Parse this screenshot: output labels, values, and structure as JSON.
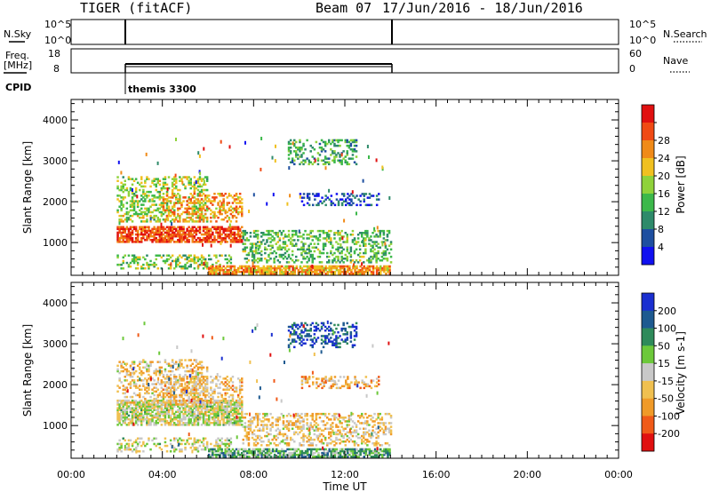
{
  "header": {
    "station": "TIGER (fitACF)",
    "beam": "Beam 07",
    "date_range": "17/Jun/2016 - 18/Jun/2016"
  },
  "param_panels": {
    "nsky_label": "N.Sky",
    "nsky_ticks": [
      "10^5",
      "10^0"
    ],
    "nsearch_label": "N.Search",
    "nsearch_ticks": [
      "10^5",
      "10^0"
    ],
    "freq_label": "Freq.",
    "freq_unit": "[MHz]",
    "freq_ticks": [
      "18",
      "8"
    ],
    "nave_label": "Nave",
    "nave_ticks": [
      "60",
      "0"
    ],
    "cpid_label": "CPID",
    "cpid_value": "themis 3300"
  },
  "chart_data": [
    {
      "type": "heatmap",
      "name": "power",
      "ylabel": "Slant Range [km]",
      "xlabel": "Time UT",
      "x_ticks": [
        "00:00",
        "04:00",
        "08:00",
        "12:00",
        "16:00",
        "20:00",
        "00:00"
      ],
      "xlim_hours": [
        0,
        24
      ],
      "ylim": [
        200,
        4500
      ],
      "y_ticks": [
        1000,
        2000,
        3000,
        4000
      ],
      "colorbar_label": "Power [dB]",
      "colorbar_ticks": [
        "4",
        "8",
        "12",
        "16",
        "20",
        "24",
        "28"
      ],
      "colors": [
        "#1010f0",
        "#1e4fa0",
        "#2e8a6a",
        "#3cb84a",
        "#8fd23a",
        "#f0c020",
        "#f08a18",
        "#f04a14",
        "#e01010"
      ],
      "data_extent_hours": [
        2,
        14
      ],
      "regions": [
        {
          "t": [
            2,
            7.5
          ],
          "r": [
            1000,
            1400
          ],
          "level": 0.85
        },
        {
          "t": [
            2,
            6
          ],
          "r": [
            1500,
            2600
          ],
          "level": 0.5
        },
        {
          "t": [
            4,
            7.5
          ],
          "r": [
            1500,
            2200
          ],
          "level": 0.7
        },
        {
          "t": [
            2,
            7
          ],
          "r": [
            350,
            700
          ],
          "level": 0.45
        },
        {
          "t": [
            6,
            14
          ],
          "r": [
            220,
            420
          ],
          "level": 0.7
        },
        {
          "t": [
            9.5,
            12.5
          ],
          "r": [
            2900,
            3500
          ],
          "level": 0.35
        },
        {
          "t": [
            10,
            13.5
          ],
          "r": [
            1900,
            2200
          ],
          "level": 0.15
        },
        {
          "t": [
            7.5,
            14
          ],
          "r": [
            500,
            1300
          ],
          "level": 0.4
        }
      ]
    },
    {
      "type": "heatmap",
      "name": "velocity",
      "ylabel": "Slant Range [km]",
      "xlabel": "Time UT",
      "x_ticks": [
        "00:00",
        "04:00",
        "08:00",
        "12:00",
        "16:00",
        "20:00",
        "00:00"
      ],
      "xlim_hours": [
        0,
        24
      ],
      "ylim": [
        200,
        4500
      ],
      "y_ticks": [
        1000,
        2000,
        3000,
        4000
      ],
      "colorbar_label": "Velocity [m s-1]",
      "colorbar_ticks": [
        "200",
        "100",
        "50",
        "15",
        "-15",
        "-50",
        "-100",
        "-200"
      ],
      "colors": [
        "#1a2fd0",
        "#1e5a90",
        "#2e8a5a",
        "#6cc83a",
        "#c8c8c8",
        "#f0c050",
        "#f09a28",
        "#f05a18",
        "#e01010"
      ],
      "data_extent_hours": [
        2,
        14
      ],
      "regions": [
        {
          "t": [
            2,
            7.5
          ],
          "r": [
            1000,
            1600
          ],
          "level": 0.5
        },
        {
          "t": [
            2,
            6
          ],
          "r": [
            1500,
            2600
          ],
          "level": 0.6
        },
        {
          "t": [
            4,
            7.5
          ],
          "r": [
            1500,
            2200
          ],
          "level": 0.62
        },
        {
          "t": [
            2,
            7
          ],
          "r": [
            350,
            700
          ],
          "level": 0.5
        },
        {
          "t": [
            6,
            14
          ],
          "r": [
            220,
            420
          ],
          "level": 0.35
        },
        {
          "t": [
            9.5,
            12.5
          ],
          "r": [
            2900,
            3500
          ],
          "level": 0.12
        },
        {
          "t": [
            10,
            13.5
          ],
          "r": [
            1900,
            2200
          ],
          "level": 0.65
        },
        {
          "t": [
            7.5,
            14
          ],
          "r": [
            500,
            1300
          ],
          "level": 0.6
        }
      ]
    }
  ]
}
